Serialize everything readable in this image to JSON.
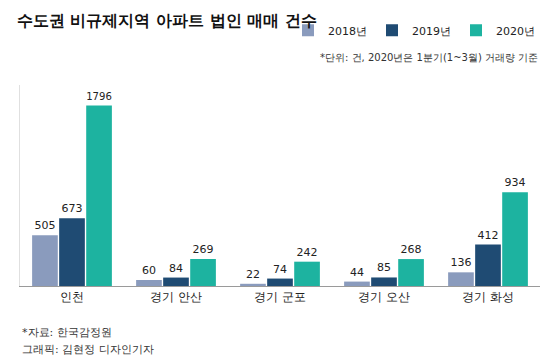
{
  "chart_data": {
    "type": "bar",
    "title": "수도권 비규제지역 아파트 법인 매매 건수",
    "note": "*단위: 건, 2020년은 1분기(1~3월) 거래량 기준",
    "footnotes": [
      "*자료: 한국감정원",
      "그래픽: 김현정 디자인기자"
    ],
    "categories": [
      "인천",
      "경기 안산",
      "경기 군포",
      "경기 오산",
      "경기 화성"
    ],
    "series": [
      {
        "name": "2018년",
        "color": "#8a9bbd",
        "values": [
          505,
          60,
          22,
          44,
          136
        ]
      },
      {
        "name": "2019년",
        "color": "#1f4b73",
        "values": [
          673,
          84,
          74,
          85,
          412
        ]
      },
      {
        "name": "2020년",
        "color": "#1db3a0",
        "values": [
          1796,
          269,
          242,
          268,
          934
        ]
      }
    ],
    "ylim": [
      0,
      2000
    ],
    "yticks": [],
    "data_labels": true,
    "tick_labels": "x",
    "grid": false,
    "legend": "top-right"
  }
}
